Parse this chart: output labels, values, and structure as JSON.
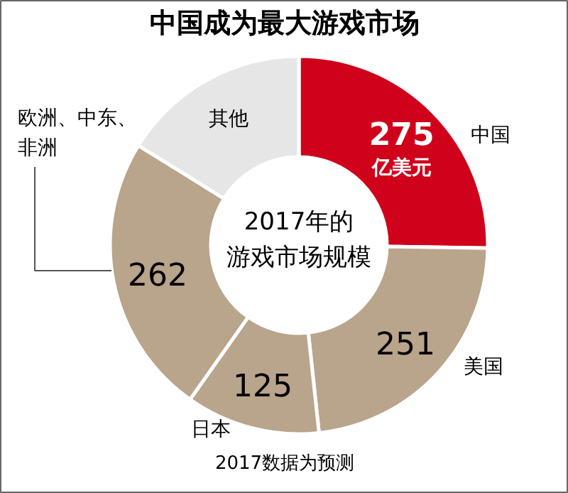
{
  "chart_data": {
    "type": "donut",
    "title": "中国成为最大游戏市场",
    "categories": [
      "中国",
      "美国",
      "日本",
      "欧洲、中东、非洲",
      "其他"
    ],
    "values": [
      275,
      251,
      125,
      262,
      176
    ],
    "colors": [
      "#d0021b",
      "#b9a48c",
      "#b9a48c",
      "#b9a48c",
      "#e6e6e6"
    ],
    "value_labels": [
      "275",
      "251",
      "125",
      "262",
      null
    ],
    "annotations": [
      "亿美元",
      "2017年的",
      "游戏市场规模",
      "2017数据为预测"
    ]
  }
}
